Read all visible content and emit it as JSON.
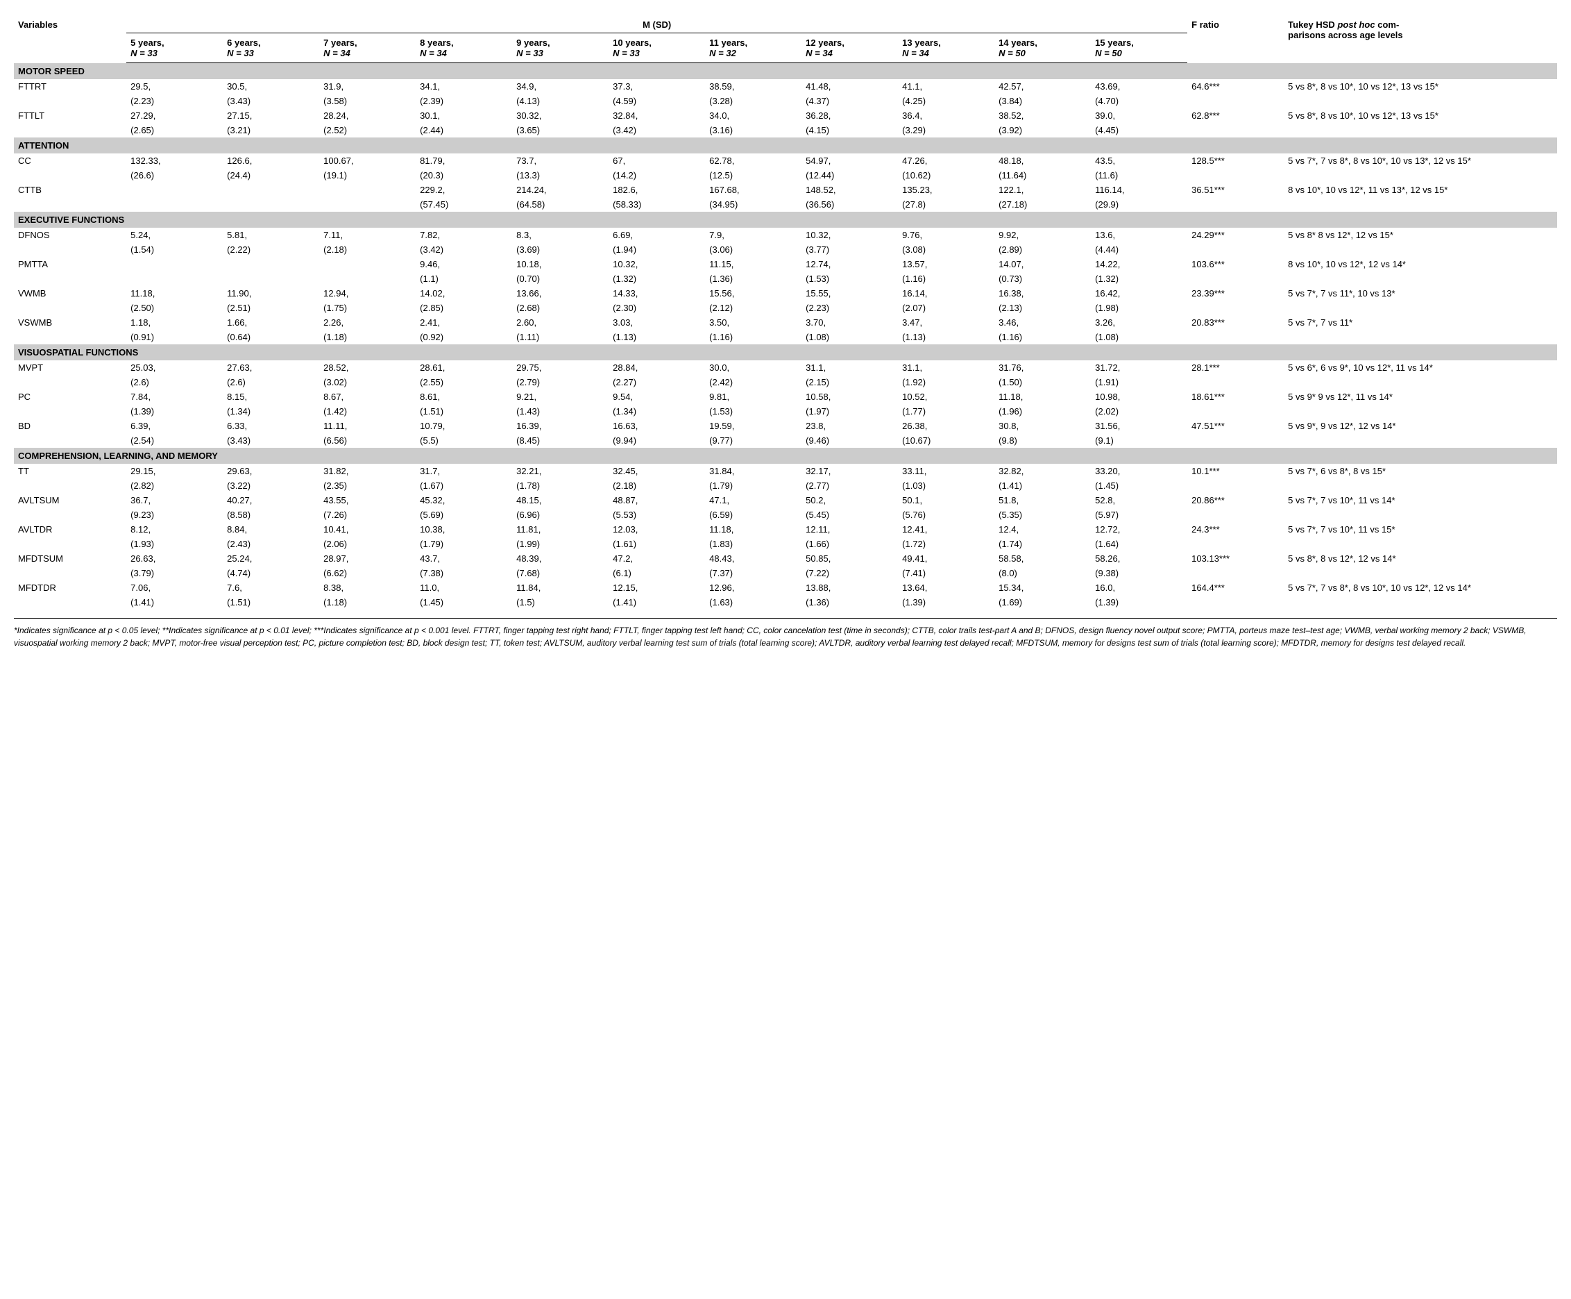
{
  "headers": {
    "variables": "Variables",
    "msd": "M (SD)",
    "fratio": "F ratio",
    "tukey_line1": "Tukey HSD ",
    "tukey_line2": "post hoc",
    "tukey_line3": " com-",
    "tukey_line4": "parisons across age levels"
  },
  "age_cols": [
    {
      "y": "5 years,",
      "n": "N = 33"
    },
    {
      "y": "6 years,",
      "n": "N = 33"
    },
    {
      "y": "7 years,",
      "n": "N = 34"
    },
    {
      "y": "8 years,",
      "n": "N = 34"
    },
    {
      "y": "9 years,",
      "n": "N = 33"
    },
    {
      "y": "10 years,",
      "n": "N = 33"
    },
    {
      "y": "11 years,",
      "n": "N = 32"
    },
    {
      "y": "12 years,",
      "n": "N = 34"
    },
    {
      "y": "13 years,",
      "n": "N = 34"
    },
    {
      "y": "14 years,",
      "n": "N = 50"
    },
    {
      "y": "15 years,",
      "n": "N = 50"
    }
  ],
  "sections": [
    {
      "title": "MOTOR SPEED",
      "rows": [
        {
          "var": "FTTRT",
          "cells": [
            {
              "m": "29.5,",
              "s": "(2.23)"
            },
            {
              "m": "30.5,",
              "s": "(3.43)"
            },
            {
              "m": "31.9,",
              "s": "(3.58)"
            },
            {
              "m": "34.1,",
              "s": "(2.39)"
            },
            {
              "m": "34.9,",
              "s": "(4.13)"
            },
            {
              "m": "37.3,",
              "s": "(4.59)"
            },
            {
              "m": "38.59,",
              "s": "(3.28)"
            },
            {
              "m": "41.48,",
              "s": "(4.37)"
            },
            {
              "m": "41.1,",
              "s": "(4.25)"
            },
            {
              "m": "42.57,",
              "s": "(3.84)"
            },
            {
              "m": "43.69,",
              "s": "(4.70)"
            }
          ],
          "f": "64.6***",
          "tukey": "5 vs 8*, 8 vs 10*, 10 vs 12*, 13 vs 15*"
        },
        {
          "var": "FTTLT",
          "cells": [
            {
              "m": "27.29,",
              "s": "(2.65)"
            },
            {
              "m": "27.15,",
              "s": "(3.21)"
            },
            {
              "m": "28.24,",
              "s": "(2.52)"
            },
            {
              "m": "30.1,",
              "s": "(2.44)"
            },
            {
              "m": "30.32,",
              "s": "(3.65)"
            },
            {
              "m": "32.84,",
              "s": "(3.42)"
            },
            {
              "m": "34.0,",
              "s": "(3.16)"
            },
            {
              "m": "36.28,",
              "s": "(4.15)"
            },
            {
              "m": "36.4,",
              "s": "(3.29)"
            },
            {
              "m": "38.52,",
              "s": "(3.92)"
            },
            {
              "m": "39.0,",
              "s": "(4.45)"
            }
          ],
          "f": "62.8***",
          "tukey": "5 vs 8*, 8 vs 10*, 10 vs 12*, 13 vs 15*"
        }
      ]
    },
    {
      "title": "ATTENTION",
      "rows": [
        {
          "var": "CC",
          "cells": [
            {
              "m": "132.33,",
              "s": "(26.6)"
            },
            {
              "m": "126.6,",
              "s": "(24.4)"
            },
            {
              "m": "100.67,",
              "s": "(19.1)"
            },
            {
              "m": "81.79,",
              "s": "(20.3)"
            },
            {
              "m": "73.7,",
              "s": "(13.3)"
            },
            {
              "m": "67,",
              "s": "(14.2)"
            },
            {
              "m": "62.78,",
              "s": "(12.5)"
            },
            {
              "m": "54.97,",
              "s": "(12.44)"
            },
            {
              "m": "47.26,",
              "s": "(10.62)"
            },
            {
              "m": "48.18,",
              "s": "(11.64)"
            },
            {
              "m": "43.5,",
              "s": "(11.6)"
            }
          ],
          "f": "128.5***",
          "tukey": "5 vs 7*, 7 vs 8*, 8 vs 10*, 10 vs 13*, 12 vs 15*"
        },
        {
          "var": "CTTB",
          "cells": [
            {
              "m": "",
              "s": ""
            },
            {
              "m": "",
              "s": ""
            },
            {
              "m": "",
              "s": ""
            },
            {
              "m": "229.2,",
              "s": "(57.45)"
            },
            {
              "m": "214.24,",
              "s": "(64.58)"
            },
            {
              "m": "182.6,",
              "s": "(58.33)"
            },
            {
              "m": "167.68,",
              "s": "(34.95)"
            },
            {
              "m": "148.52,",
              "s": "(36.56)"
            },
            {
              "m": "135.23,",
              "s": "(27.8)"
            },
            {
              "m": "122.1,",
              "s": "(27.18)"
            },
            {
              "m": "116.14,",
              "s": "(29.9)"
            }
          ],
          "f": "36.51***",
          "tukey": "8 vs 10*, 10 vs 12*, 11 vs 13*, 12 vs 15*"
        }
      ]
    },
    {
      "title": "EXECUTIVE FUNCTIONS",
      "rows": [
        {
          "var": "DFNOS",
          "cells": [
            {
              "m": "5.24,",
              "s": "(1.54)"
            },
            {
              "m": "5.81,",
              "s": "(2.22)"
            },
            {
              "m": "7.11,",
              "s": "(2.18)"
            },
            {
              "m": "7.82,",
              "s": "(3.42)"
            },
            {
              "m": "8.3,",
              "s": "(3.69)"
            },
            {
              "m": "6.69,",
              "s": "(1.94)"
            },
            {
              "m": "7.9,",
              "s": "(3.06)"
            },
            {
              "m": "10.32,",
              "s": "(3.77)"
            },
            {
              "m": "9.76,",
              "s": "(3.08)"
            },
            {
              "m": "9.92,",
              "s": "(2.89)"
            },
            {
              "m": "13.6,",
              "s": "(4.44)"
            }
          ],
          "f": "24.29***",
          "tukey": "5 vs 8* 8 vs 12*, 12 vs 15*"
        },
        {
          "var": "PMTTA",
          "cells": [
            {
              "m": "",
              "s": ""
            },
            {
              "m": "",
              "s": ""
            },
            {
              "m": "",
              "s": ""
            },
            {
              "m": "9.46,",
              "s": "(1.1)"
            },
            {
              "m": "10.18,",
              "s": "(0.70)"
            },
            {
              "m": "10.32,",
              "s": "(1.32)"
            },
            {
              "m": "11.15,",
              "s": "(1.36)"
            },
            {
              "m": "12.74,",
              "s": "(1.53)"
            },
            {
              "m": "13.57,",
              "s": "(1.16)"
            },
            {
              "m": "14.07,",
              "s": "(0.73)"
            },
            {
              "m": "14.22,",
              "s": "(1.32)"
            }
          ],
          "f": "103.6***",
          "tukey": "8 vs 10*, 10 vs 12*, 12 vs 14*"
        },
        {
          "var": "VWMB",
          "cells": [
            {
              "m": "11.18,",
              "s": "(2.50)"
            },
            {
              "m": "11.90,",
              "s": "(2.51)"
            },
            {
              "m": "12.94,",
              "s": "(1.75)"
            },
            {
              "m": "14.02,",
              "s": "(2.85)"
            },
            {
              "m": "13.66,",
              "s": "(2.68)"
            },
            {
              "m": "14.33,",
              "s": "(2.30)"
            },
            {
              "m": "15.56,",
              "s": "(2.12)"
            },
            {
              "m": "15.55,",
              "s": "(2.23)"
            },
            {
              "m": "16.14,",
              "s": "(2.07)"
            },
            {
              "m": "16.38,",
              "s": "(2.13)"
            },
            {
              "m": "16.42,",
              "s": "(1.98)"
            }
          ],
          "f": "23.39***",
          "tukey": "5 vs 7*, 7 vs 11*, 10 vs 13*"
        },
        {
          "var": "VSWMB",
          "cells": [
            {
              "m": "1.18,",
              "s": "(0.91)"
            },
            {
              "m": "1.66,",
              "s": "(0.64)"
            },
            {
              "m": "2.26,",
              "s": "(1.18)"
            },
            {
              "m": "2.41,",
              "s": "(0.92)"
            },
            {
              "m": "2.60,",
              "s": "(1.11)"
            },
            {
              "m": "3.03,",
              "s": "(1.13)"
            },
            {
              "m": "3.50,",
              "s": "(1.16)"
            },
            {
              "m": "3.70,",
              "s": "(1.08)"
            },
            {
              "m": "3.47,",
              "s": "(1.13)"
            },
            {
              "m": "3.46,",
              "s": "(1.16)"
            },
            {
              "m": "3.26,",
              "s": "(1.08)"
            }
          ],
          "f": "20.83***",
          "tukey": "5 vs 7*, 7 vs 11*"
        }
      ]
    },
    {
      "title": "VISUOSPATIAL FUNCTIONS",
      "rows": [
        {
          "var": "MVPT",
          "cells": [
            {
              "m": "25.03,",
              "s": "(2.6)"
            },
            {
              "m": "27.63,",
              "s": "(2.6)"
            },
            {
              "m": "28.52,",
              "s": "(3.02)"
            },
            {
              "m": "28.61,",
              "s": "(2.55)"
            },
            {
              "m": "29.75,",
              "s": "(2.79)"
            },
            {
              "m": "28.84,",
              "s": "(2.27)"
            },
            {
              "m": "30.0,",
              "s": "(2.42)"
            },
            {
              "m": "31.1,",
              "s": "(2.15)"
            },
            {
              "m": "31.1,",
              "s": "(1.92)"
            },
            {
              "m": "31.76,",
              "s": "(1.50)"
            },
            {
              "m": "31.72,",
              "s": "(1.91)"
            }
          ],
          "f": "28.1***",
          "tukey": "5 vs 6*, 6 vs 9*, 10 vs 12*, 11 vs 14*"
        },
        {
          "var": "PC",
          "cells": [
            {
              "m": "7.84,",
              "s": "(1.39)"
            },
            {
              "m": "8.15,",
              "s": "(1.34)"
            },
            {
              "m": "8.67,",
              "s": "(1.42)"
            },
            {
              "m": "8.61,",
              "s": "(1.51)"
            },
            {
              "m": "9.21,",
              "s": "(1.43)"
            },
            {
              "m": "9.54,",
              "s": "(1.34)"
            },
            {
              "m": "9.81,",
              "s": "(1.53)"
            },
            {
              "m": "10.58,",
              "s": "(1.97)"
            },
            {
              "m": "10.52,",
              "s": "(1.77)"
            },
            {
              "m": "11.18,",
              "s": "(1.96)"
            },
            {
              "m": "10.98,",
              "s": "(2.02)"
            }
          ],
          "f": "18.61***",
          "tukey": "5 vs 9* 9 vs 12*, 11 vs 14*"
        },
        {
          "var": "BD",
          "cells": [
            {
              "m": "6.39,",
              "s": "(2.54)"
            },
            {
              "m": "6.33,",
              "s": "(3.43)"
            },
            {
              "m": "11.11,",
              "s": "(6.56)"
            },
            {
              "m": "10.79,",
              "s": "(5.5)"
            },
            {
              "m": "16.39,",
              "s": "(8.45)"
            },
            {
              "m": "16.63,",
              "s": "(9.94)"
            },
            {
              "m": "19.59,",
              "s": "(9.77)"
            },
            {
              "m": "23.8,",
              "s": "(9.46)"
            },
            {
              "m": "26.38,",
              "s": "(10.67)"
            },
            {
              "m": "30.8,",
              "s": "(9.8)"
            },
            {
              "m": "31.56,",
              "s": "(9.1)"
            }
          ],
          "f": "47.51***",
          "tukey": "5 vs 9*, 9 vs 12*, 12 vs 14*"
        }
      ]
    },
    {
      "title": "COMPREHENSION, LEARNING, AND MEMORY",
      "rows": [
        {
          "var": "TT",
          "cells": [
            {
              "m": "29.15,",
              "s": "(2.82)"
            },
            {
              "m": "29.63,",
              "s": "(3.22)"
            },
            {
              "m": "31.82,",
              "s": "(2.35)"
            },
            {
              "m": "31.7,",
              "s": "(1.67)"
            },
            {
              "m": "32.21,",
              "s": "(1.78)"
            },
            {
              "m": "32.45,",
              "s": "(2.18)"
            },
            {
              "m": "31.84,",
              "s": "(1.79)"
            },
            {
              "m": "32.17,",
              "s": "(2.77)"
            },
            {
              "m": "33.11,",
              "s": "(1.03)"
            },
            {
              "m": "32.82,",
              "s": "(1.41)"
            },
            {
              "m": "33.20,",
              "s": "(1.45)"
            }
          ],
          "f": "10.1***",
          "tukey": "5 vs 7*, 6 vs 8*, 8 vs 15*"
        },
        {
          "var": "AVLTSUM",
          "cells": [
            {
              "m": "36.7,",
              "s": "(9.23)"
            },
            {
              "m": "40.27,",
              "s": "(8.58)"
            },
            {
              "m": "43.55,",
              "s": "(7.26)"
            },
            {
              "m": "45.32,",
              "s": "(5.69)"
            },
            {
              "m": "48.15,",
              "s": "(6.96)"
            },
            {
              "m": "48.87,",
              "s": "(5.53)"
            },
            {
              "m": "47.1,",
              "s": "(6.59)"
            },
            {
              "m": "50.2,",
              "s": "(5.45)"
            },
            {
              "m": "50.1,",
              "s": "(5.76)"
            },
            {
              "m": "51.8,",
              "s": "(5.35)"
            },
            {
              "m": "52.8,",
              "s": "(5.97)"
            }
          ],
          "f": "20.86***",
          "tukey": "5 vs 7*, 7 vs 10*, 11 vs 14*"
        },
        {
          "var": "AVLTDR",
          "cells": [
            {
              "m": "8.12,",
              "s": "(1.93)"
            },
            {
              "m": "8.84,",
              "s": "(2.43)"
            },
            {
              "m": "10.41,",
              "s": "(2.06)"
            },
            {
              "m": "10.38,",
              "s": "(1.79)"
            },
            {
              "m": "11.81,",
              "s": "(1.99)"
            },
            {
              "m": "12.03,",
              "s": "(1.61)"
            },
            {
              "m": "11.18,",
              "s": "(1.83)"
            },
            {
              "m": "12.11,",
              "s": "(1.66)"
            },
            {
              "m": "12.41,",
              "s": "(1.72)"
            },
            {
              "m": "12.4,",
              "s": "(1.74)"
            },
            {
              "m": "12.72,",
              "s": "(1.64)"
            }
          ],
          "f": "24.3***",
          "tukey": "5 vs 7*, 7 vs 10*, 11 vs 15*"
        },
        {
          "var": "MFDTSUM",
          "cells": [
            {
              "m": "26.63,",
              "s": "(3.79)"
            },
            {
              "m": "25.24,",
              "s": "(4.74)"
            },
            {
              "m": "28.97,",
              "s": "(6.62)"
            },
            {
              "m": "43.7,",
              "s": "(7.38)"
            },
            {
              "m": "48.39,",
              "s": "(7.68)"
            },
            {
              "m": "47.2,",
              "s": "(6.1)"
            },
            {
              "m": "48.43,",
              "s": "(7.37)"
            },
            {
              "m": "50.85,",
              "s": "(7.22)"
            },
            {
              "m": "49.41,",
              "s": "(7.41)"
            },
            {
              "m": "58.58,",
              "s": "(8.0)"
            },
            {
              "m": "58.26,",
              "s": "(9.38)"
            }
          ],
          "f": "103.13***",
          "tukey": "5 vs 8*, 8 vs 12*, 12 vs 14*"
        },
        {
          "var": "MFDTDR",
          "cells": [
            {
              "m": "7.06,",
              "s": "(1.41)"
            },
            {
              "m": "7.6,",
              "s": "(1.51)"
            },
            {
              "m": "8.38,",
              "s": "(1.18)"
            },
            {
              "m": "11.0,",
              "s": "(1.45)"
            },
            {
              "m": "11.84,",
              "s": "(1.5)"
            },
            {
              "m": "12.15,",
              "s": "(1.41)"
            },
            {
              "m": "12.96,",
              "s": "(1.63)"
            },
            {
              "m": "13.88,",
              "s": "(1.36)"
            },
            {
              "m": "13.64,",
              "s": "(1.39)"
            },
            {
              "m": "15.34,",
              "s": "(1.69)"
            },
            {
              "m": "16.0,",
              "s": "(1.39)"
            }
          ],
          "f": "164.4***",
          "tukey": "5 vs 7*, 7 vs 8*, 8 vs 10*, 10 vs 12*, 12 vs 14*"
        }
      ]
    }
  ],
  "footnote": "*Indicates significance at p < 0.05 level; **Indicates significance at p < 0.01 level; ***Indicates significance at p < 0.001 level. FTTRT, finger tapping test right hand; FTTLT, finger tapping test left hand; CC, color cancelation test (time in seconds); CTTB, color trails test-part A and B; DFNOS, design fluency novel output score; PMTTA, porteus maze test–test age; VWMB, verbal working memory 2 back; VSWMB, visuospatial working memory 2 back; MVPT, motor-free visual perception test; PC, picture completion test; BD, block design test; TT, token test; AVLTSUM, auditory verbal learning test sum of trials (total learning score); AVLTDR, auditory verbal learning test delayed recall; MFDTSUM, memory for designs test sum of trials (total learning score); MFDTDR, memory for designs test delayed recall."
}
